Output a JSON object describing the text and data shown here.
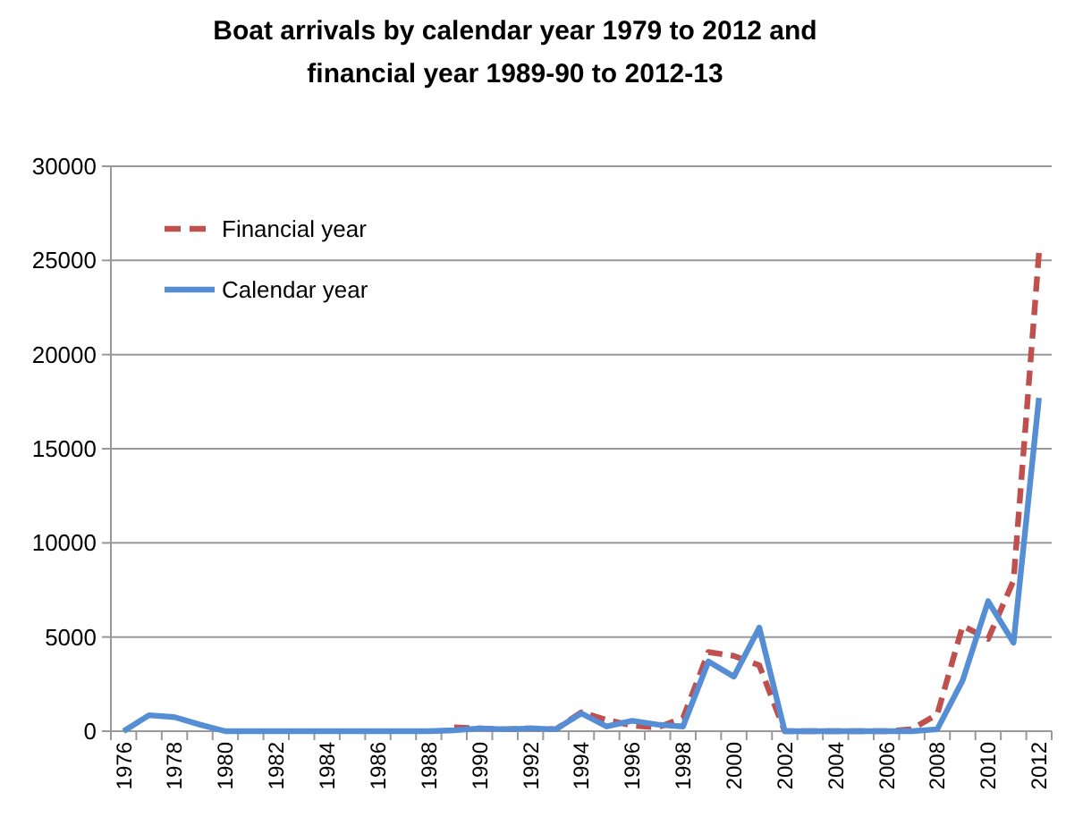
{
  "chart_data": {
    "type": "line",
    "title": "Boat arrivals by calendar year 1979  to 2012  and\nfinancial year 1989-90  to 2012-13",
    "categories": [
      "1976",
      null,
      "1978",
      null,
      "1980",
      null,
      "1982",
      null,
      "1984",
      null,
      "1986",
      null,
      "1988",
      null,
      "1990",
      null,
      "1992",
      null,
      "1994",
      null,
      "1996",
      null,
      "1998",
      null,
      "2000",
      null,
      "2002",
      null,
      "2004",
      null,
      "2006",
      null,
      "2008",
      null,
      "2010",
      null,
      "2012"
    ],
    "series": [
      {
        "name": "Financial year",
        "color": "#c0504d",
        "line_style": "dashed",
        "values": [
          null,
          null,
          null,
          null,
          null,
          null,
          null,
          null,
          null,
          null,
          null,
          null,
          null,
          200,
          150,
          100,
          150,
          100,
          1000,
          600,
          300,
          200,
          700,
          4200,
          4000,
          3500,
          0,
          0,
          0,
          0,
          0,
          100,
          900,
          5600,
          4900,
          8000,
          25400
        ]
      },
      {
        "name": "Calendar year",
        "color": "#558ed5",
        "line_style": "solid",
        "values": [
          0,
          850,
          750,
          350,
          0,
          0,
          0,
          0,
          0,
          0,
          0,
          0,
          0,
          50,
          150,
          100,
          150,
          100,
          950,
          250,
          550,
          350,
          250,
          3700,
          2900,
          5500,
          0,
          0,
          0,
          0,
          0,
          0,
          100,
          2700,
          6900,
          4700,
          17700
        ]
      }
    ],
    "ylim": [
      0,
      30000
    ],
    "yticks": [
      0,
      5000,
      10000,
      15000,
      20000,
      25000,
      30000
    ],
    "grid": "y",
    "legend": "top left"
  }
}
